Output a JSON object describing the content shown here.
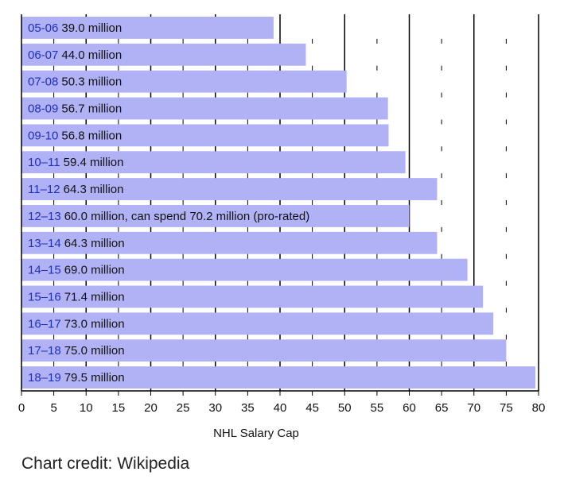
{
  "chart_data": {
    "type": "bar",
    "orientation": "horizontal",
    "xlabel": "NHL Salary Cap",
    "xlim": [
      0,
      80
    ],
    "xticks": [
      0,
      5,
      10,
      15,
      20,
      25,
      30,
      35,
      40,
      45,
      50,
      55,
      60,
      65,
      70,
      75,
      80
    ],
    "grid": true,
    "colors": {
      "bar": "#b1b2f6",
      "season_text": "#1f2fbf"
    },
    "categories": [
      "05-06",
      "06-07",
      "07-08",
      "08-09",
      "09-10",
      "10–11",
      "11–12",
      "12–13",
      "13–14",
      "14–15",
      "15–16",
      "16–17",
      "17–18",
      "18–19"
    ],
    "values": [
      39.0,
      44.0,
      50.3,
      56.7,
      56.8,
      59.4,
      64.3,
      60.0,
      64.3,
      69.0,
      71.4,
      73.0,
      75.0,
      79.5
    ],
    "bar_labels": [
      "39.0 million",
      "44.0 million",
      "50.3 million",
      "56.7 million",
      "56.8 million",
      "59.4 million",
      "64.3 million",
      "60.0 million, can spend 70.2 million (pro-rated)",
      "64.3 million",
      "69.0 million",
      "71.4 million",
      "73.0 million",
      "75.0 million",
      "79.5 million"
    ]
  },
  "credit": "Chart credit: Wikipedia"
}
